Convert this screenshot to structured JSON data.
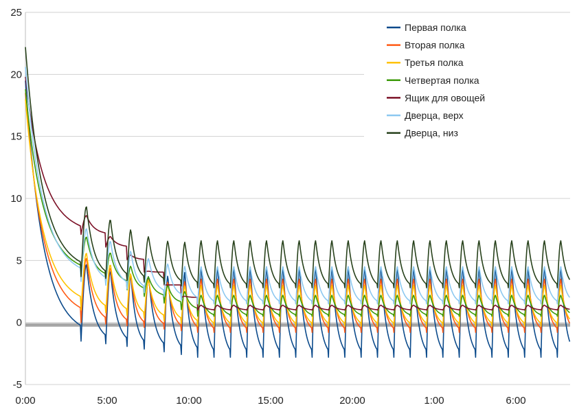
{
  "chart_data": {
    "type": "line",
    "title": "",
    "xlabel": "",
    "ylabel": "",
    "ylim": [
      -5,
      25
    ],
    "y_ticks": [
      "-5",
      "0",
      "5",
      "10",
      "15",
      "20",
      "25"
    ],
    "x_tick_labels": [
      "0:00",
      "5:00",
      "10:00",
      "15:00",
      "20:00",
      "1:00",
      "6:00"
    ],
    "grid": "horizontal",
    "legend_position": "top-right",
    "reference_line": {
      "value": -0.2,
      "color": "#a6a6a6"
    },
    "series": [
      {
        "name": "Первая полка",
        "color": "#0b4a8b",
        "start": 19.5,
        "first_defrost_min": -1.0,
        "steady_min": -2.8,
        "steady_max": 4.5
      },
      {
        "name": "Вторая полка",
        "color": "#ff5a14",
        "start": 18.5,
        "first_defrost_min": 0.5,
        "steady_min": -0.8,
        "steady_max": 3.5
      },
      {
        "name": "Третья полка",
        "color": "#ffc200",
        "start": 18.0,
        "first_defrost_min": 1.5,
        "steady_min": -0.3,
        "steady_max": 3.0
      },
      {
        "name": "Четвертая полка",
        "color": "#3c9a0a",
        "start": 18.8,
        "first_defrost_min": 4.2,
        "steady_min": 0.5,
        "steady_max": 2.2
      },
      {
        "name": "Ящик для овощей",
        "color": "#7b1026",
        "start": 19.8,
        "first_defrost_min": 7.6,
        "steady_min": 1.0,
        "steady_max": 1.4
      },
      {
        "name": "Дверца, верх",
        "color": "#8cc8f0",
        "start": 20.6,
        "first_defrost_min": 3.8,
        "steady_min": 1.5,
        "steady_max": 4.5
      },
      {
        "name": "Дверца, низ",
        "color": "#27411b",
        "start": 22.2,
        "first_defrost_min": 4.2,
        "steady_min": 2.8,
        "steady_max": 6.6
      }
    ]
  }
}
